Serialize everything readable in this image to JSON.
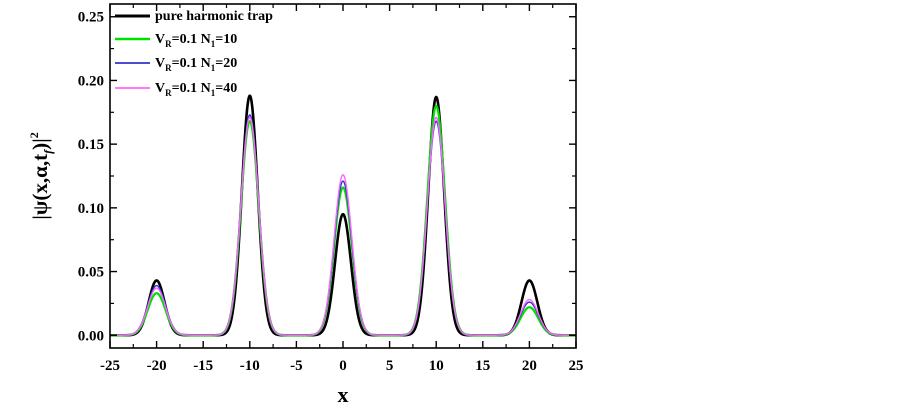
{
  "chart_data": {
    "type": "line",
    "xlabel": "x",
    "ylabel": "|ψ(x,α,t",
    "ylabel_sub": "f",
    "ylabel_end": ")|",
    "ylabel_sup": "2",
    "xlim": [
      -25,
      25
    ],
    "ylim": [
      -0.01,
      0.26
    ],
    "x_ticks": [
      -25,
      -20,
      -15,
      -10,
      -5,
      0,
      5,
      10,
      15,
      20,
      25
    ],
    "y_ticks": [
      0.0,
      0.05,
      0.1,
      0.15,
      0.2,
      0.25
    ],
    "x_tick_labels": [
      "-25",
      "-20",
      "-15",
      "-10",
      "-5",
      "0",
      "5",
      "10",
      "15",
      "20",
      "25"
    ],
    "y_tick_labels": [
      "0.00",
      "0.05",
      "0.10",
      "0.15",
      "0.20",
      "0.25"
    ],
    "legend_position": "top-left",
    "grid": false,
    "series": [
      {
        "name": "pure harmonic trap",
        "legend": {
          "a": "pure harmonic trap"
        },
        "color": "#000000",
        "stroke_width": 2.6,
        "peaks": [
          {
            "center": -20,
            "height": 0.043,
            "width": 0.85
          },
          {
            "center": -10,
            "height": 0.188,
            "width": 0.85
          },
          {
            "center": 0,
            "height": 0.095,
            "width": 0.85
          },
          {
            "center": 10,
            "height": 0.187,
            "width": 0.85
          },
          {
            "center": 20,
            "height": 0.043,
            "width": 0.85
          }
        ]
      },
      {
        "name": "V_R=0.1 N_1=10",
        "legend": {
          "a": "V",
          "a_sub": "R",
          "b": "=0.1 N",
          "b_sub": "1",
          "c": "=10"
        },
        "color": "#00e000",
        "stroke_width": 2.2,
        "peaks": [
          {
            "center": -20,
            "height": 0.033,
            "width": 0.95
          },
          {
            "center": -10,
            "height": 0.168,
            "width": 0.95
          },
          {
            "center": 0,
            "height": 0.116,
            "width": 0.95
          },
          {
            "center": 10,
            "height": 0.18,
            "width": 0.95
          },
          {
            "center": 20,
            "height": 0.022,
            "width": 0.95
          }
        ]
      },
      {
        "name": "V_R=0.1 N_1=20",
        "legend": {
          "a": "V",
          "a_sub": "R",
          "b": "=0.1 N",
          "b_sub": "1",
          "c": "=20"
        },
        "color": "#3333cc",
        "stroke_width": 1.4,
        "peaks": [
          {
            "center": -20,
            "height": 0.039,
            "width": 0.95
          },
          {
            "center": -10,
            "height": 0.173,
            "width": 0.95
          },
          {
            "center": 0,
            "height": 0.121,
            "width": 0.95
          },
          {
            "center": 10,
            "height": 0.168,
            "width": 0.95
          },
          {
            "center": 20,
            "height": 0.026,
            "width": 0.95
          }
        ]
      },
      {
        "name": "V_R=0.1 N_1=40",
        "legend": {
          "a": "V",
          "a_sub": "R",
          "b": "=0.1 N",
          "b_sub": "1",
          "c": "=40"
        },
        "color": "#ff66ff",
        "stroke_width": 1.4,
        "peaks": [
          {
            "center": -20,
            "height": 0.037,
            "width": 0.95
          },
          {
            "center": -10,
            "height": 0.171,
            "width": 0.95
          },
          {
            "center": 0,
            "height": 0.126,
            "width": 0.95
          },
          {
            "center": 10,
            "height": 0.171,
            "width": 0.95
          },
          {
            "center": 20,
            "height": 0.028,
            "width": 0.95
          }
        ]
      }
    ]
  }
}
